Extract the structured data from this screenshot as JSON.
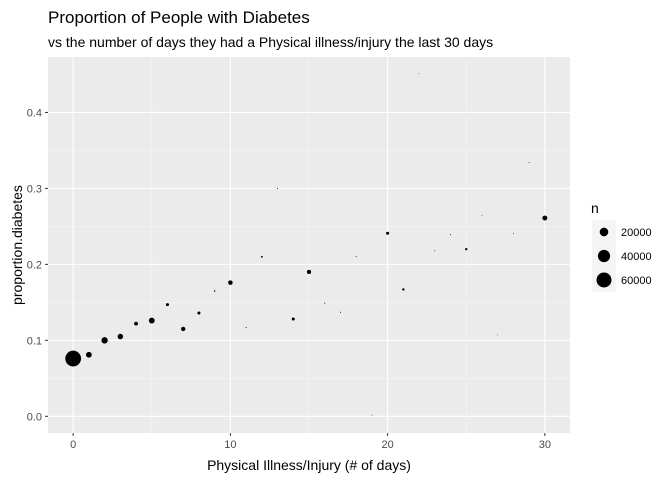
{
  "chart_data": {
    "type": "scatter",
    "title": "Proportion of People with Diabetes",
    "subtitle": "vs the number of days they had a Physical illness/injury the last 30 days",
    "xlabel": "Physical Illness/Injury (# of days)",
    "ylabel": "proportion.diabetes",
    "xlim": [
      -1.6,
      31.6
    ],
    "ylim": [
      -0.022,
      0.473
    ],
    "x_ticks": [
      0,
      10,
      20,
      30
    ],
    "y_ticks": [
      0.0,
      0.1,
      0.2,
      0.3,
      0.4
    ],
    "y_tick_labels": [
      "0.0",
      "0.1",
      "0.2",
      "0.3",
      "0.4"
    ],
    "grid": true,
    "legend": {
      "title": "n",
      "placement": "right",
      "sizes": [
        20000,
        40000,
        60000
      ],
      "labels": [
        "20000",
        "40000",
        "60000"
      ]
    },
    "points": [
      {
        "x": 0,
        "y": 0.076,
        "n": 67000
      },
      {
        "x": 1,
        "y": 0.081,
        "n": 9000
      },
      {
        "x": 2,
        "y": 0.1,
        "n": 11000
      },
      {
        "x": 3,
        "y": 0.105,
        "n": 8000
      },
      {
        "x": 4,
        "y": 0.122,
        "n": 4000
      },
      {
        "x": 5,
        "y": 0.126,
        "n": 9000
      },
      {
        "x": 6,
        "y": 0.147,
        "n": 2500
      },
      {
        "x": 7,
        "y": 0.115,
        "n": 5000
      },
      {
        "x": 8,
        "y": 0.136,
        "n": 2500
      },
      {
        "x": 9,
        "y": 0.165,
        "n": 600
      },
      {
        "x": 10,
        "y": 0.176,
        "n": 5500
      },
      {
        "x": 11,
        "y": 0.117,
        "n": 300
      },
      {
        "x": 12,
        "y": 0.21,
        "n": 900
      },
      {
        "x": 13,
        "y": 0.3,
        "n": 300
      },
      {
        "x": 14,
        "y": 0.128,
        "n": 2500
      },
      {
        "x": 15,
        "y": 0.19,
        "n": 4500
      },
      {
        "x": 16,
        "y": 0.149,
        "n": 300
      },
      {
        "x": 17,
        "y": 0.137,
        "n": 300
      },
      {
        "x": 18,
        "y": 0.21,
        "n": 300
      },
      {
        "x": 19,
        "y": 0.001,
        "n": 150
      },
      {
        "x": 20,
        "y": 0.241,
        "n": 2500
      },
      {
        "x": 21,
        "y": 0.167,
        "n": 1500
      },
      {
        "x": 22,
        "y": 0.451,
        "n": 150
      },
      {
        "x": 23,
        "y": 0.218,
        "n": 200
      },
      {
        "x": 24,
        "y": 0.239,
        "n": 300
      },
      {
        "x": 25,
        "y": 0.22,
        "n": 1500
      },
      {
        "x": 26,
        "y": 0.264,
        "n": 200
      },
      {
        "x": 27,
        "y": 0.107,
        "n": 150
      },
      {
        "x": 28,
        "y": 0.241,
        "n": 200
      },
      {
        "x": 29,
        "y": 0.334,
        "n": 200
      },
      {
        "x": 30,
        "y": 0.261,
        "n": 6500
      }
    ]
  },
  "colors": {
    "panel": "#ebebeb",
    "grid_major": "#ffffff",
    "grid_minor": "#f5f5f5",
    "point": "#000000",
    "tick": "#333333"
  }
}
